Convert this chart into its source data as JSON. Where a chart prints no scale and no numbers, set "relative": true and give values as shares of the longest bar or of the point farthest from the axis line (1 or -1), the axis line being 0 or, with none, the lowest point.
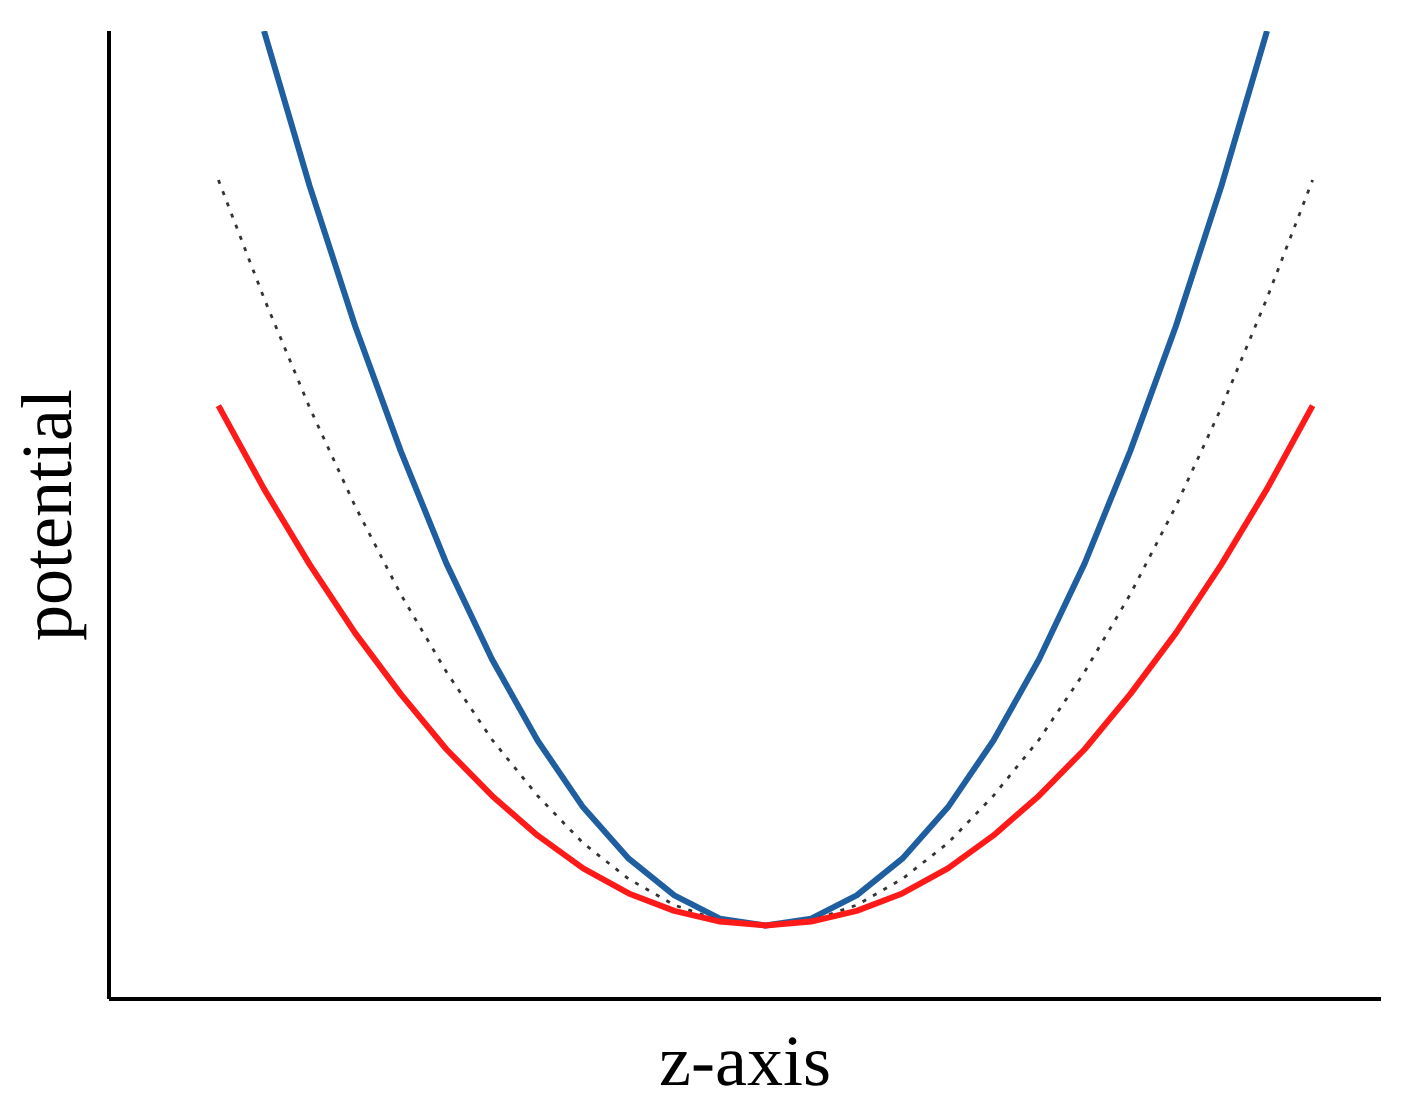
{
  "chart_data": {
    "type": "line",
    "relative": true,
    "xlabel": "z-axis",
    "ylabel": "potential",
    "grid": false,
    "marker": "none",
    "categories": [
      null,
      null,
      null,
      null,
      null,
      null,
      null,
      null,
      null,
      null,
      null,
      null,
      null,
      null,
      null,
      null,
      null,
      null,
      null,
      null,
      null,
      null,
      null,
      null,
      null
    ],
    "series": [
      {
        "color": "#1f5fa0",
        "line_style": "solid",
        "values": [
          null,
          1.0,
          0.84,
          0.695,
          0.566,
          0.45,
          0.351,
          0.267,
          0.198,
          0.145,
          0.107,
          0.083,
          0.076,
          0.083,
          0.107,
          0.145,
          0.198,
          0.267,
          0.351,
          0.45,
          0.566,
          0.695,
          0.84,
          1.0,
          null
        ]
      },
      {
        "color": "#333333",
        "line_style": "dotted",
        "values": [
          0.846,
          0.724,
          0.611,
          0.509,
          0.418,
          0.338,
          0.268,
          0.21,
          0.161,
          0.124,
          0.097,
          0.081,
          0.076,
          0.081,
          0.097,
          0.124,
          0.161,
          0.21,
          0.268,
          0.338,
          0.418,
          0.509,
          0.611,
          0.724,
          0.846
        ]
      },
      {
        "color": "#ff1a1a",
        "line_style": "solid",
        "values": [
          0.613,
          0.527,
          0.449,
          0.378,
          0.315,
          0.258,
          0.21,
          0.169,
          0.135,
          0.109,
          0.091,
          0.08,
          0.076,
          0.08,
          0.091,
          0.109,
          0.135,
          0.169,
          0.21,
          0.258,
          0.315,
          0.378,
          0.449,
          0.527,
          0.613
        ]
      }
    ]
  }
}
